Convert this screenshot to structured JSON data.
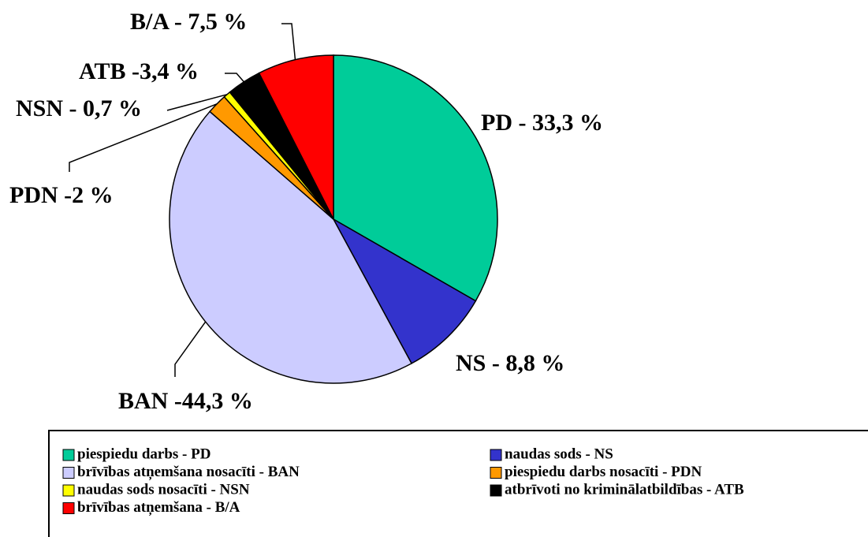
{
  "chart_data": {
    "type": "pie",
    "categories": [
      "piespiedu darbs - PD",
      "naudas sods - NS",
      "brīvības atņemšana nosacīti - BAN",
      "piespiedu darbs nosacīti - PDN",
      "naudas sods nosacīti - NSN",
      "atbrīvoti no kriminālatbildības - ATB",
      "brīvības atņemšana - B/A"
    ],
    "values": [
      33.3,
      8.8,
      44.3,
      2,
      0.7,
      3.4,
      7.5
    ],
    "value_labels": [
      "PD - 33,3 %",
      "NS - 8,8 %",
      "BAN -44,3 %",
      "PDN -2 %",
      "NSN - 0,7 %",
      "ATB -3,4 %",
      "B/A - 7,5 %"
    ],
    "colors": [
      "#00CC99",
      "#3333CC",
      "#CCCCFF",
      "#FF9900",
      "#FFFF00",
      "#000000",
      "#FF0000"
    ]
  }
}
